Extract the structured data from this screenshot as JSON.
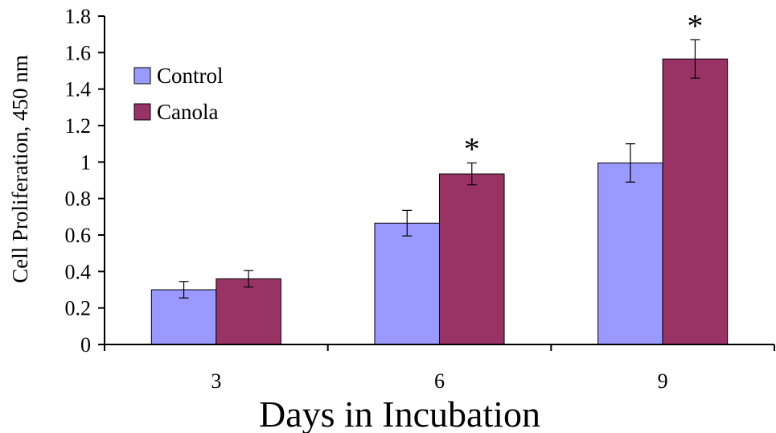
{
  "chart_data": {
    "type": "bar",
    "title": "",
    "xlabel": "Days in Incubation",
    "ylabel": "Cell Proliferation, 450 nm",
    "categories": [
      "3",
      "6",
      "9"
    ],
    "ylim": [
      0,
      1.8
    ],
    "yticks": [
      "0",
      "0.2",
      "0.4",
      "0.6",
      "0.8",
      "1",
      "1.2",
      "1.4",
      "1.6",
      "1.8"
    ],
    "grid": false,
    "legend_position": "top-left",
    "series": [
      {
        "name": "Control",
        "color": "#9999ff",
        "values": [
          0.3,
          0.665,
          0.995
        ],
        "errors": [
          0.045,
          0.07,
          0.105
        ]
      },
      {
        "name": "Canola",
        "color": "#993366",
        "values": [
          0.36,
          0.935,
          1.565
        ],
        "errors": [
          0.045,
          0.06,
          0.105
        ]
      }
    ],
    "annotations": [
      {
        "category": "6",
        "series": "Canola",
        "text": "*"
      },
      {
        "category": "9",
        "series": "Canola",
        "text": "*"
      }
    ]
  }
}
